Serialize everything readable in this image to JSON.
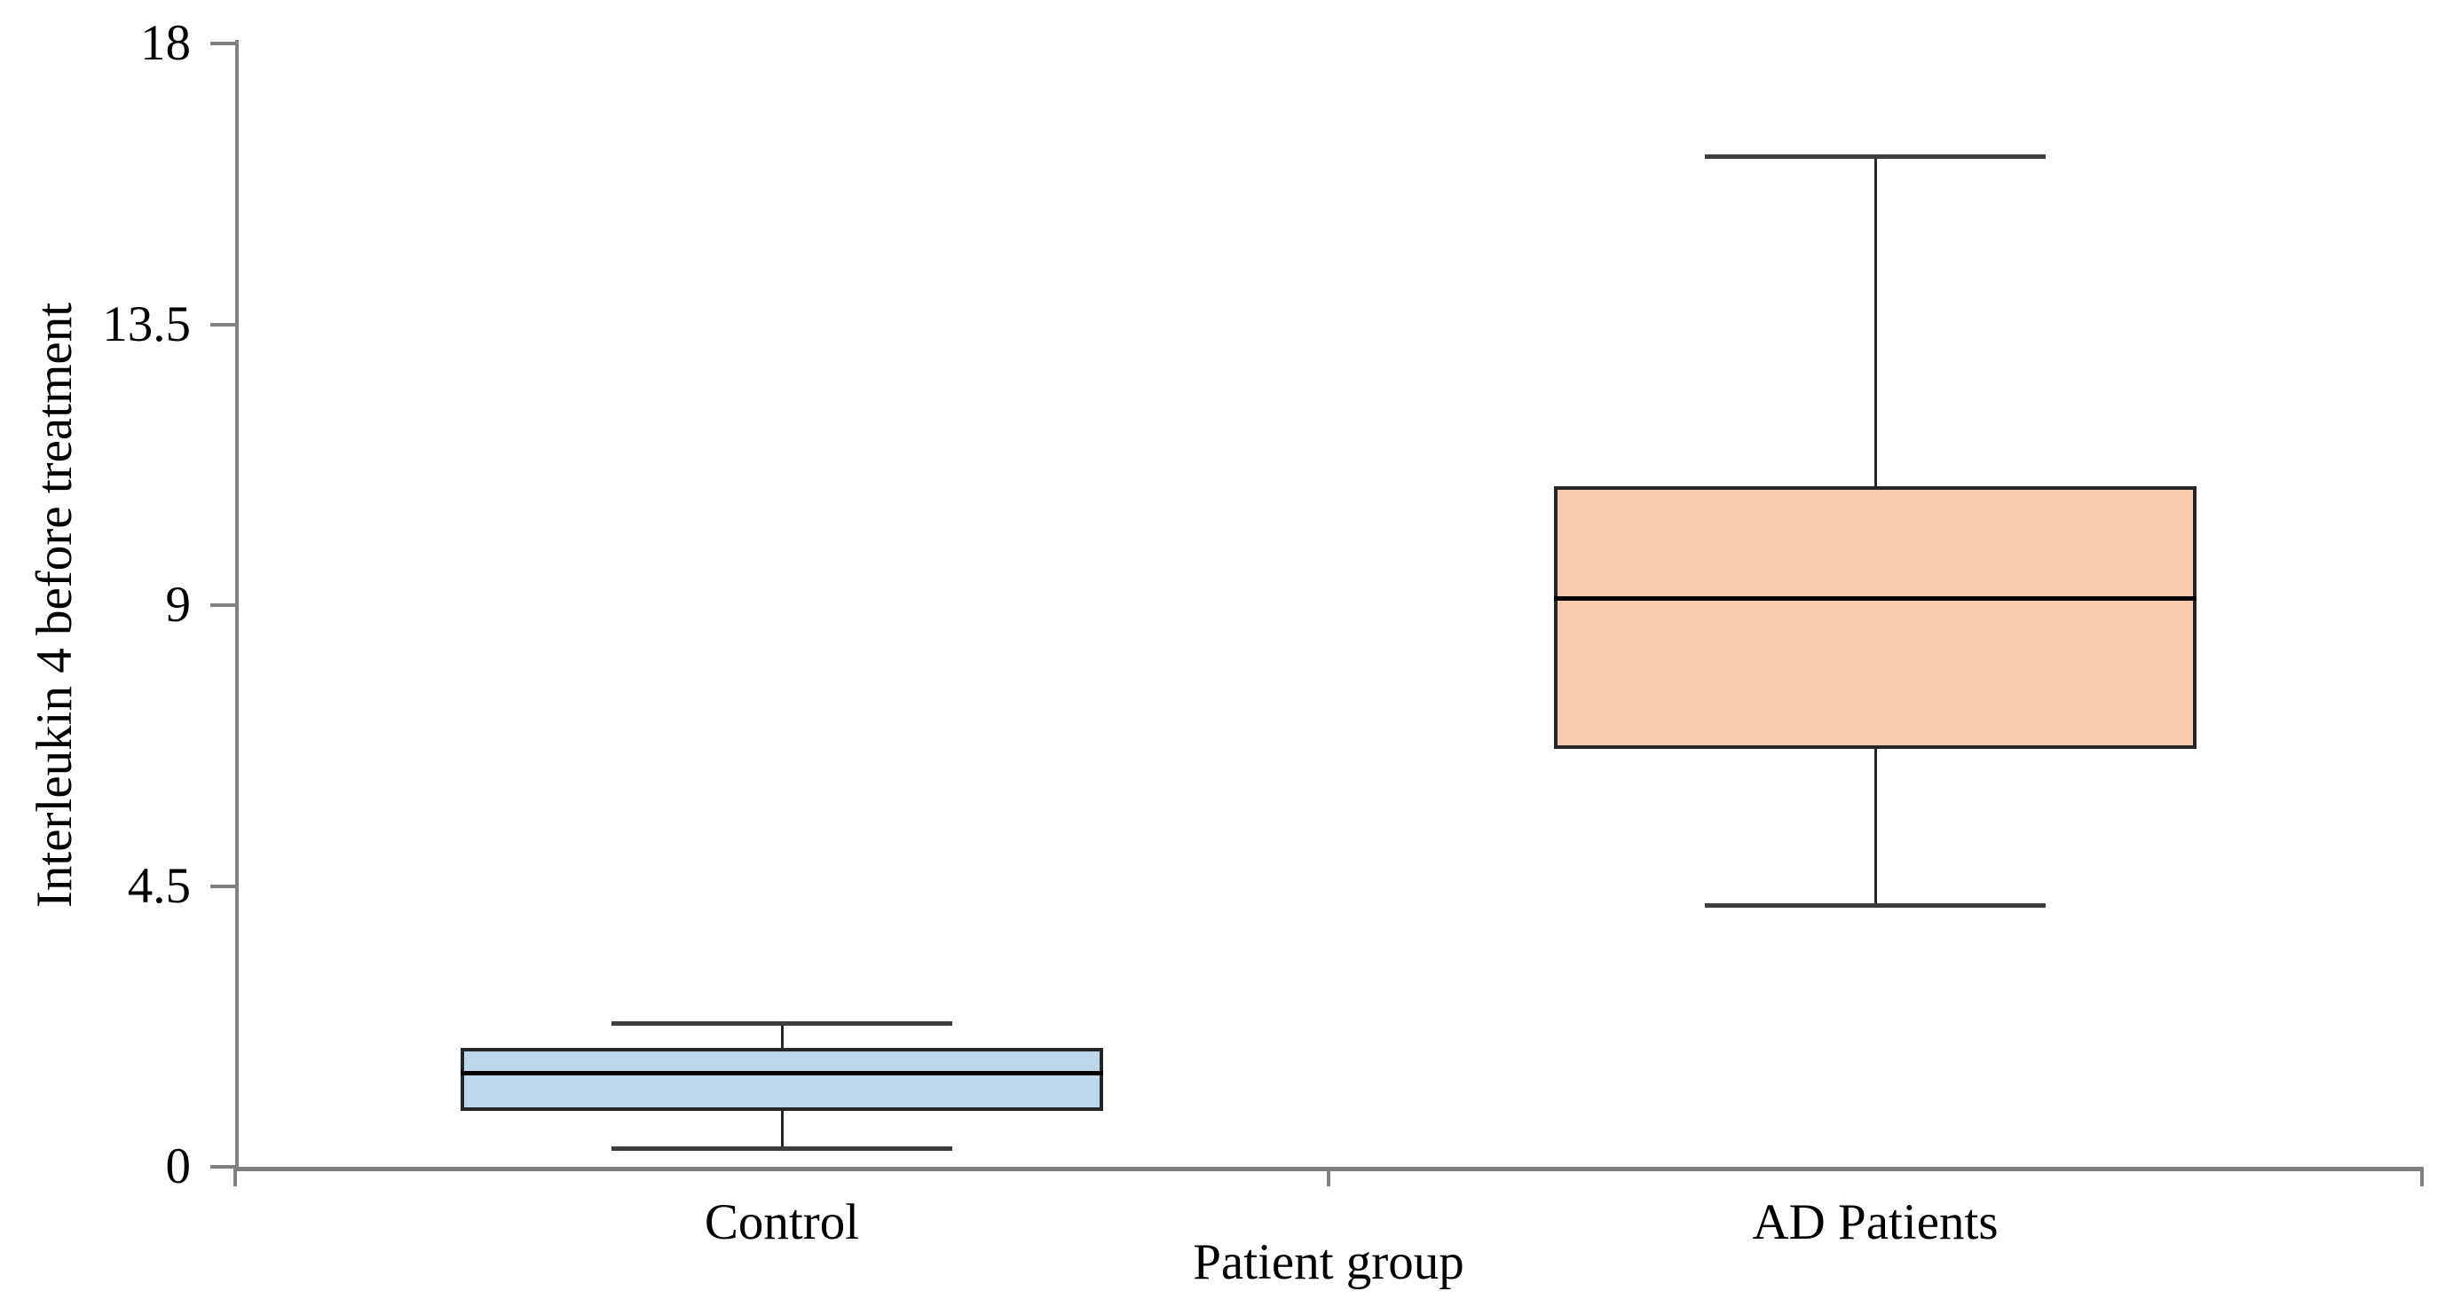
{
  "chart_data": {
    "type": "boxplot",
    "title": "",
    "xlabel": "Patient group",
    "ylabel": "Interleukin 4 before treatment",
    "ylim": [
      0,
      18
    ],
    "yticks": [
      18,
      13.5,
      9,
      4.5,
      0
    ],
    "ytick_labels": [
      "18",
      "13.5",
      "9",
      "4.5",
      "0"
    ],
    "categories": [
      "Control",
      "AD Patients"
    ],
    "grid": "off",
    "legend": "none",
    "series": [
      {
        "name": "Control",
        "whisker_low": 0.3,
        "q1": 0.9,
        "median": 1.5,
        "q3": 1.9,
        "whisker_high": 2.3,
        "fill_color": "#BDD7EE"
      },
      {
        "name": "AD Patients",
        "whisker_low": 4.2,
        "q1": 6.7,
        "median": 9.1,
        "q3": 10.9,
        "whisker_high": 16.2,
        "fill_color": "#F8CBAD"
      }
    ],
    "colors": {
      "axis_line": "#808080",
      "box_border": "#262626",
      "median_line": "#000000",
      "text": "#000000"
    }
  }
}
